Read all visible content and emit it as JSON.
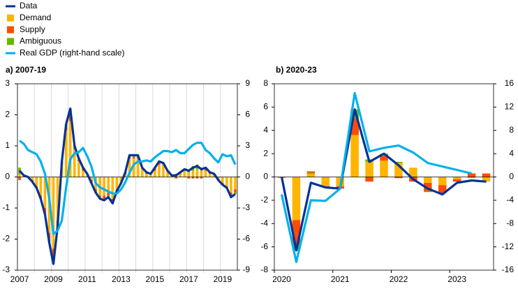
{
  "chart_data": [
    {
      "type": "bar",
      "title": "a) 2007-19",
      "categories": [
        "2007",
        null,
        null,
        null,
        null,
        null,
        null,
        null,
        "2009",
        null,
        null,
        null,
        null,
        null,
        null,
        null,
        "2011",
        null,
        null,
        null,
        null,
        null,
        null,
        null,
        "2013",
        null,
        null,
        null,
        null,
        null,
        null,
        null,
        "2015",
        null,
        null,
        null,
        null,
        null,
        null,
        null,
        "2017",
        null,
        null,
        null,
        null,
        null,
        null,
        null,
        "2019",
        null,
        null,
        null
      ],
      "series": [
        {
          "name": "Data",
          "type": "line",
          "color": "#003299",
          "values": [
            0.2,
            0.05,
            0,
            -0.15,
            -0.35,
            -0.7,
            -1.2,
            -2.1,
            -2.8,
            -1.6,
            0.5,
            1.7,
            2.2,
            1,
            0.6,
            0.3,
            0.1,
            -0.2,
            -0.5,
            -0.7,
            -0.75,
            -0.65,
            -0.85,
            -0.45,
            -0.2,
            0.15,
            0.7,
            0.7,
            0.7,
            0.3,
            0.15,
            0.1,
            0.3,
            0.5,
            0.45,
            0.2,
            0.05,
            0.05,
            0.15,
            0.25,
            0.2,
            0.3,
            0.35,
            0.25,
            0.3,
            0.15,
            0.1,
            -0.1,
            -0.25,
            -0.35,
            -0.65,
            -0.55
          ]
        },
        {
          "name": "Demand",
          "type": "bar",
          "color": "#ffb400",
          "values": [
            0.1,
            0.05,
            0,
            -0.1,
            -0.3,
            -0.6,
            -1,
            -1.8,
            -2.3,
            -1.4,
            0.4,
            1.5,
            1.8,
            0.9,
            0.5,
            0.2,
            0.1,
            -0.1,
            -0.4,
            -0.6,
            -0.6,
            -0.5,
            -0.7,
            -0.4,
            -0.2,
            0.1,
            0.6,
            0.6,
            0.6,
            0.3,
            0.1,
            0.1,
            0.2,
            0.4,
            0.4,
            0.2,
            0.05,
            0.05,
            0.1,
            0.2,
            0.15,
            0.2,
            0.25,
            0.2,
            0.2,
            0.1,
            0.1,
            -0.1,
            -0.2,
            -0.3,
            -0.5,
            -0.4
          ]
        },
        {
          "name": "Supply",
          "type": "bar",
          "color": "#ff4b00",
          "values": [
            -0.1,
            0,
            0,
            -0.05,
            -0.05,
            -0.1,
            -0.15,
            -0.2,
            -0.3,
            -0.15,
            0.05,
            0.1,
            0.2,
            0.05,
            0.05,
            0.05,
            0,
            -0.1,
            -0.05,
            -0.05,
            -0.1,
            -0.1,
            -0.1,
            -0.05,
            0,
            0.05,
            0.05,
            0.05,
            0.05,
            0,
            0.05,
            0,
            0.05,
            0.05,
            0,
            0,
            0,
            -0.05,
            0,
            0,
            -0.05,
            -0.05,
            -0.05,
            -0.05,
            0.05,
            0.05,
            0,
            0,
            -0.05,
            -0.05,
            -0.1,
            -0.1
          ]
        },
        {
          "name": "Ambiguous",
          "type": "bar",
          "color": "#65b800",
          "values": [
            0.2,
            0,
            0,
            0,
            0,
            0,
            -0.05,
            -0.1,
            -0.2,
            -0.05,
            0.05,
            0.1,
            0.2,
            0.05,
            0.05,
            0.05,
            0,
            0,
            -0.05,
            -0.05,
            -0.05,
            -0.05,
            -0.05,
            0,
            0,
            0,
            0.05,
            0.05,
            0.05,
            0,
            0,
            0,
            0.05,
            0.05,
            0.05,
            0,
            0,
            0.05,
            0.05,
            0.05,
            0.1,
            0.15,
            0.15,
            0.1,
            0.05,
            0,
            0,
            0,
            0,
            0,
            -0.05,
            -0.05
          ]
        },
        {
          "name": "Real GDP (right-hand scale)",
          "type": "line",
          "axis": "y2",
          "color": "#00b1ea",
          "values": [
            3.5,
            3.2,
            2.6,
            2.4,
            2.2,
            1.5,
            0.3,
            -2.0,
            -5.5,
            -5.2,
            -4.2,
            -1.0,
            1.7,
            2.3,
            2.4,
            2.8,
            2.0,
            1.0,
            -0.6,
            -1.0,
            -1.2,
            -1.4,
            -1.6,
            -1.6,
            -1.2,
            -0.5,
            0.4,
            1.2,
            1.5,
            1.5,
            1.6,
            1.5,
            1.9,
            2.2,
            2.5,
            2.5,
            2.4,
            2.6,
            2.3,
            2.3,
            2.7,
            3.1,
            3.3,
            3.3,
            2.6,
            2.3,
            1.8,
            1.4,
            2.2,
            2.0,
            2.1,
            1.2
          ]
        }
      ],
      "ylim": [
        -3,
        3
      ],
      "yticks": [
        -3,
        -2,
        -1,
        0,
        1,
        2,
        3
      ],
      "y2lim": [
        -9,
        9
      ],
      "y2ticks": [
        -9,
        -6,
        -3,
        0,
        3,
        6,
        9
      ],
      "xgrid": true
    },
    {
      "type": "bar",
      "title": "b) 2020-23",
      "categories": [
        "2020",
        null,
        null,
        null,
        "2021",
        null,
        null,
        null,
        "2022",
        null,
        null,
        null,
        "2023",
        null,
        null
      ],
      "series": [
        {
          "type": "line",
          "color": "#003299",
          "values": [
            0,
            -6.3,
            -0.5,
            -0.9,
            -1.0,
            5.8,
            1.3,
            2.0,
            1.0,
            -0.2,
            -1.0,
            -1.5,
            -0.5,
            -0.3,
            -0.4
          ]
        },
        {
          "type": "bar",
          "color": "#ffb400",
          "values": [
            -0.1,
            -3.7,
            0.3,
            -0.8,
            -0.8,
            3.6,
            1.3,
            1.4,
            1.2,
            0.8,
            -0.5,
            -0.7,
            -0.2,
            -0.1,
            -0.4
          ]
        },
        {
          "type": "bar",
          "color": "#ff4b00",
          "values": [
            0,
            -2.1,
            0.1,
            -0.1,
            -0.2,
            1.4,
            -0.4,
            0.4,
            -0.1,
            -0.4,
            -0.7,
            -0.7,
            -0.2,
            0.3,
            0.3
          ]
        },
        {
          "type": "bar",
          "color": "#65b800",
          "values": [
            0,
            -0.5,
            0.1,
            0,
            0,
            0.8,
            0.2,
            0.2,
            0.1,
            0,
            -0.1,
            0,
            0,
            0,
            0
          ]
        },
        {
          "type": "line",
          "axis": "y2",
          "color": "#00b1ea",
          "values": [
            -3.0,
            -14.6,
            -4.0,
            -4.1,
            -2.0,
            14.4,
            4.4,
            5.0,
            5.4,
            4.2,
            2.4,
            1.8,
            1.2,
            0.6,
            null
          ]
        }
      ],
      "ylim": [
        -8,
        8
      ],
      "yticks": [
        -8,
        -6,
        -4,
        -2,
        0,
        2,
        4,
        6,
        8
      ],
      "y2lim": [
        -16,
        16
      ],
      "y2ticks": [
        -16,
        -12,
        -8,
        -4,
        0,
        4,
        8,
        12,
        16
      ],
      "xgrid": false
    }
  ]
}
